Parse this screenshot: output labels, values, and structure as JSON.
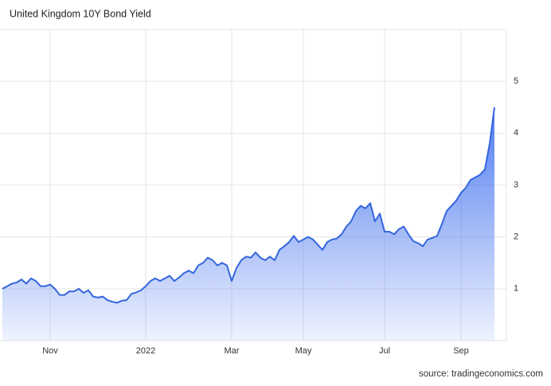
{
  "chart_data": {
    "type": "area",
    "title": "United Kingdom 10Y Bond Yield",
    "source": "source: tradingeconomics.com",
    "categories": [
      null,
      null,
      null,
      null,
      null,
      null,
      null,
      null,
      null,
      null,
      "Nov",
      null,
      null,
      null,
      null,
      null,
      null,
      null,
      null,
      null,
      null,
      null,
      null,
      null,
      null,
      null,
      null,
      null,
      null,
      null,
      "2022",
      null,
      null,
      null,
      null,
      null,
      null,
      null,
      null,
      null,
      null,
      null,
      null,
      null,
      null,
      null,
      null,
      null,
      "Mar",
      null,
      null,
      null,
      null,
      null,
      null,
      null,
      null,
      null,
      null,
      null,
      null,
      null,
      null,
      "May",
      null,
      null,
      null,
      null,
      null,
      null,
      null,
      null,
      null,
      null,
      null,
      null,
      null,
      null,
      null,
      null,
      "Jul",
      null,
      null,
      null,
      null,
      null,
      null,
      null,
      null,
      null,
      null,
      null,
      null,
      null,
      null,
      null,
      "Sep",
      null,
      null,
      null,
      null,
      null,
      null,
      null
    ],
    "values": [
      1.0,
      1.05,
      1.1,
      1.12,
      1.18,
      1.1,
      1.2,
      1.15,
      1.05,
      1.05,
      1.08,
      1.0,
      0.88,
      0.88,
      0.95,
      0.95,
      1.0,
      0.92,
      0.97,
      0.85,
      0.83,
      0.85,
      0.78,
      0.75,
      0.73,
      0.77,
      0.78,
      0.9,
      0.93,
      0.97,
      1.05,
      1.15,
      1.2,
      1.15,
      1.2,
      1.25,
      1.15,
      1.22,
      1.3,
      1.35,
      1.3,
      1.45,
      1.5,
      1.6,
      1.55,
      1.45,
      1.5,
      1.45,
      1.15,
      1.4,
      1.55,
      1.62,
      1.6,
      1.7,
      1.6,
      1.55,
      1.62,
      1.55,
      1.75,
      1.82,
      1.9,
      2.02,
      1.9,
      1.95,
      2.0,
      1.95,
      1.85,
      1.75,
      1.9,
      1.95,
      1.97,
      2.05,
      2.2,
      2.3,
      2.5,
      2.6,
      2.55,
      2.65,
      2.3,
      2.45,
      2.1,
      2.1,
      2.05,
      2.15,
      2.2,
      2.05,
      1.92,
      1.88,
      1.82,
      1.95,
      1.98,
      2.02,
      2.25,
      2.5,
      2.6,
      2.7,
      2.85,
      2.95,
      3.1,
      3.15,
      3.2,
      3.3,
      3.8,
      4.5
    ],
    "color": "#3366dd",
    "ylim": [
      0,
      6
    ],
    "yticks": [
      1,
      2,
      3,
      4,
      5
    ],
    "grid": true
  }
}
